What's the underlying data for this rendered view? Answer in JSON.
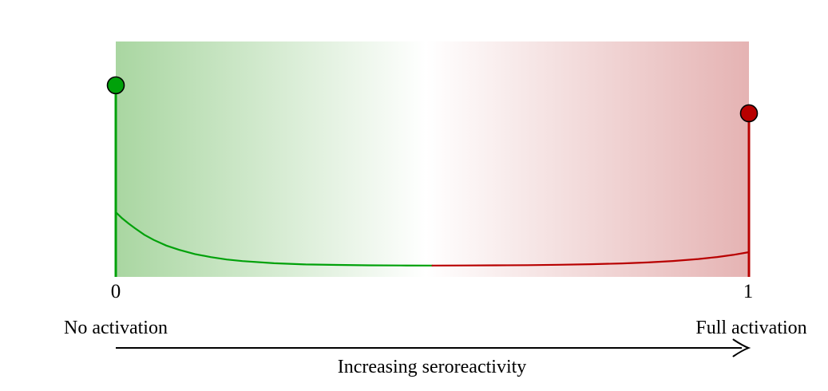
{
  "figure": {
    "background_color": "#ffffff"
  },
  "chart_data": {
    "type": "line",
    "title": "",
    "xlabel": "Increasing seroreactivity",
    "ylabel": "",
    "x_range": [
      0,
      1
    ],
    "x_ticks": [
      0,
      1
    ],
    "x_tick_labels": [
      "0",
      "1"
    ],
    "annotations": [
      {
        "text": "No activation",
        "x": 0,
        "position": "below-axis-left"
      },
      {
        "text": "Full activation",
        "x": 1,
        "position": "below-axis-right"
      }
    ],
    "legend": "none",
    "grid": false,
    "background_gradient": {
      "left": "#a9d6a1",
      "mid": "#ffffff",
      "right": "#e5b3b3"
    },
    "axis_color": "#000000",
    "series": [
      {
        "name": "no-activation-point-mass",
        "type": "stem",
        "color": "#00a10a",
        "x": 0,
        "y": 0.814
      },
      {
        "name": "full-activation-point-mass",
        "type": "stem",
        "color": "#b80000",
        "x": 1,
        "y": 0.695
      },
      {
        "name": "no-activation-density",
        "type": "line",
        "color": "#00a10a",
        "points": [
          [
            0.0,
            0.275
          ],
          [
            0.01,
            0.249
          ],
          [
            0.02,
            0.227
          ],
          [
            0.03,
            0.207
          ],
          [
            0.045,
            0.179
          ],
          [
            0.06,
            0.157
          ],
          [
            0.08,
            0.133
          ],
          [
            0.1,
            0.115
          ],
          [
            0.125,
            0.097
          ],
          [
            0.15,
            0.084
          ],
          [
            0.175,
            0.074
          ],
          [
            0.2,
            0.067
          ],
          [
            0.25,
            0.058
          ],
          [
            0.3,
            0.053
          ],
          [
            0.35,
            0.051
          ],
          [
            0.4,
            0.049
          ],
          [
            0.45,
            0.0485
          ],
          [
            0.5,
            0.048
          ]
        ]
      },
      {
        "name": "full-activation-density",
        "type": "line",
        "color": "#b80000",
        "points": [
          [
            0.5,
            0.048
          ],
          [
            0.55,
            0.0485
          ],
          [
            0.6,
            0.049
          ],
          [
            0.65,
            0.05
          ],
          [
            0.7,
            0.0515
          ],
          [
            0.75,
            0.054
          ],
          [
            0.8,
            0.0573
          ],
          [
            0.84,
            0.0615
          ],
          [
            0.88,
            0.0675
          ],
          [
            0.92,
            0.076
          ],
          [
            0.95,
            0.0845
          ],
          [
            0.975,
            0.0937
          ],
          [
            1.0,
            0.105
          ]
        ]
      }
    ]
  }
}
